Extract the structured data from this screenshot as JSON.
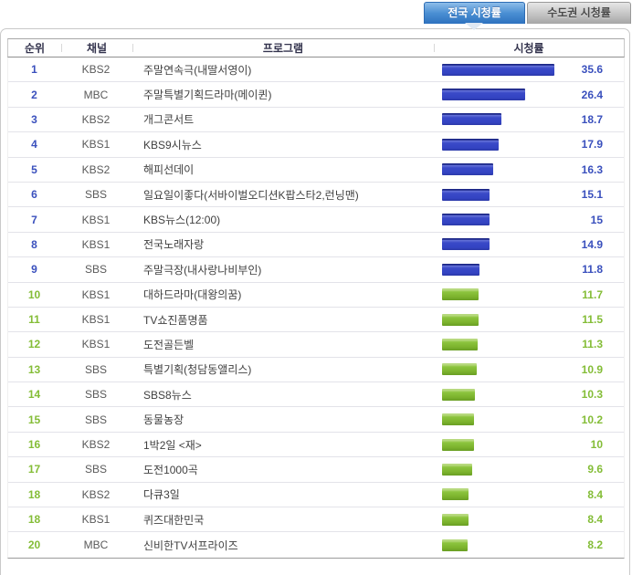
{
  "tabs": [
    {
      "label": "전국 시청률",
      "active": true
    },
    {
      "label": "수도권 시청률",
      "active": false
    }
  ],
  "table": {
    "columns": {
      "rank": "순위",
      "channel": "채널",
      "program": "프로그램",
      "rating": "시청률"
    },
    "rows": [
      {
        "rank": "1",
        "channel": "KBS2",
        "program": "주말연속극(내딸서영이)",
        "rating": "35.6",
        "value": 35.6,
        "tier": "blue"
      },
      {
        "rank": "2",
        "channel": "MBC",
        "program": "주말특별기획드라마(메이퀸)",
        "rating": "26.4",
        "value": 26.4,
        "tier": "blue"
      },
      {
        "rank": "3",
        "channel": "KBS2",
        "program": "개그콘서트",
        "rating": "18.7",
        "value": 18.7,
        "tier": "blue"
      },
      {
        "rank": "4",
        "channel": "KBS1",
        "program": "KBS9시뉴스",
        "rating": "17.9",
        "value": 17.9,
        "tier": "blue"
      },
      {
        "rank": "5",
        "channel": "KBS2",
        "program": "해피선데이",
        "rating": "16.3",
        "value": 16.3,
        "tier": "blue"
      },
      {
        "rank": "6",
        "channel": "SBS",
        "program": "일요일이좋다(서바이벌오디션K팝스타2,런닝맨)",
        "rating": "15.1",
        "value": 15.1,
        "tier": "blue"
      },
      {
        "rank": "7",
        "channel": "KBS1",
        "program": "KBS뉴스(12:00)",
        "rating": "15",
        "value": 15,
        "tier": "blue"
      },
      {
        "rank": "8",
        "channel": "KBS1",
        "program": "전국노래자랑",
        "rating": "14.9",
        "value": 14.9,
        "tier": "blue"
      },
      {
        "rank": "9",
        "channel": "SBS",
        "program": "주말극장(내사랑나비부인)",
        "rating": "11.8",
        "value": 11.8,
        "tier": "blue"
      },
      {
        "rank": "10",
        "channel": "KBS1",
        "program": "대하드라마(대왕의꿈)",
        "rating": "11.7",
        "value": 11.7,
        "tier": "green"
      },
      {
        "rank": "11",
        "channel": "KBS1",
        "program": "TV쇼진품명품",
        "rating": "11.5",
        "value": 11.5,
        "tier": "green"
      },
      {
        "rank": "12",
        "channel": "KBS1",
        "program": "도전골든벨",
        "rating": "11.3",
        "value": 11.3,
        "tier": "green"
      },
      {
        "rank": "13",
        "channel": "SBS",
        "program": "특별기획(청담동앨리스)",
        "rating": "10.9",
        "value": 10.9,
        "tier": "green"
      },
      {
        "rank": "14",
        "channel": "SBS",
        "program": "SBS8뉴스",
        "rating": "10.3",
        "value": 10.3,
        "tier": "green"
      },
      {
        "rank": "15",
        "channel": "SBS",
        "program": "동물농장",
        "rating": "10.2",
        "value": 10.2,
        "tier": "green"
      },
      {
        "rank": "16",
        "channel": "KBS2",
        "program": "1박2일 <재>",
        "rating": "10",
        "value": 10,
        "tier": "green"
      },
      {
        "rank": "17",
        "channel": "SBS",
        "program": "도전1000곡",
        "rating": "9.6",
        "value": 9.6,
        "tier": "green"
      },
      {
        "rank": "18",
        "channel": "KBS2",
        "program": "다큐3일",
        "rating": "8.4",
        "value": 8.4,
        "tier": "green"
      },
      {
        "rank": "18",
        "channel": "KBS1",
        "program": "퀴즈대한민국",
        "rating": "8.4",
        "value": 8.4,
        "tier": "green"
      },
      {
        "rank": "20",
        "channel": "MBC",
        "program": "신비한TV서프라이즈",
        "rating": "8.2",
        "value": 8.2,
        "tier": "green"
      }
    ]
  },
  "colors": {
    "active_tab_blue": "#4a8fd3",
    "inactive_tab_gray": "#c4c4c4",
    "rank_value_blue": "#3a50bd",
    "rank_value_green": "#84bd37",
    "bar_blue": "#3343c2",
    "bar_green": "#7cb32d"
  },
  "chart_data": {
    "type": "bar",
    "orientation": "horizontal",
    "title": "전국 시청률",
    "categories": [
      "주말연속극(내딸서영이)",
      "주말특별기획드라마(메이퀸)",
      "개그콘서트",
      "KBS9시뉴스",
      "해피선데이",
      "일요일이좋다(서바이벌오디션K팝스타2,런닝맨)",
      "KBS뉴스(12:00)",
      "전국노래자랑",
      "주말극장(내사랑나비부인)",
      "대하드라마(대왕의꿈)",
      "TV쇼진품명품",
      "도전골든벨",
      "특별기획(청담동앨리스)",
      "SBS8뉴스",
      "동물농장",
      "1박2일 <재>",
      "도전1000곡",
      "다큐3일",
      "퀴즈대한민국",
      "신비한TV서프라이즈"
    ],
    "ranks": [
      1,
      2,
      3,
      4,
      5,
      6,
      7,
      8,
      9,
      10,
      11,
      12,
      13,
      14,
      15,
      16,
      17,
      18,
      18,
      20
    ],
    "channels": [
      "KBS2",
      "MBC",
      "KBS2",
      "KBS1",
      "KBS2",
      "SBS",
      "KBS1",
      "KBS1",
      "SBS",
      "KBS1",
      "KBS1",
      "KBS1",
      "SBS",
      "SBS",
      "SBS",
      "KBS2",
      "SBS",
      "KBS2",
      "KBS1",
      "MBC"
    ],
    "series": [
      {
        "name": "시청률",
        "values": [
          35.6,
          26.4,
          18.7,
          17.9,
          16.3,
          15.1,
          15,
          14.9,
          11.8,
          11.7,
          11.5,
          11.3,
          10.9,
          10.3,
          10.2,
          10,
          9.6,
          8.4,
          8.4,
          8.2
        ]
      }
    ],
    "value_range": [
      0,
      40
    ],
    "grid": false,
    "legend": false,
    "color_rule": "ranks 1-9 blue, ranks 10-20 green"
  }
}
